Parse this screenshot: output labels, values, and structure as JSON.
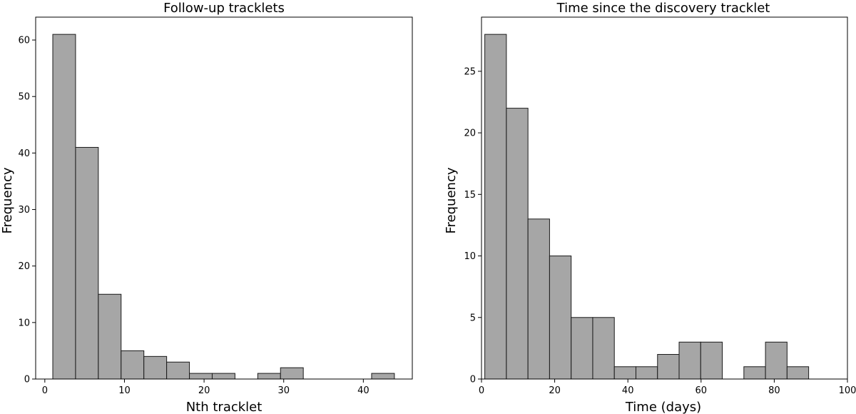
{
  "colors": {
    "bar_fill": "#a6a6a6",
    "bar_edge": "#1a1a1a"
  },
  "chart_data": [
    {
      "type": "bar",
      "title": "Follow-up tracklets",
      "xlabel": "Nth tracklet",
      "ylabel": "Frequency",
      "xlim": [
        -1.15,
        46.15
      ],
      "ylim": [
        0,
        64.05
      ],
      "xticks": [
        0,
        10,
        20,
        30,
        40
      ],
      "yticks": [
        0,
        10,
        20,
        30,
        40,
        50,
        60
      ],
      "bins": [
        {
          "x0": 1.0,
          "x1": 3.86,
          "value": 61
        },
        {
          "x0": 3.86,
          "x1": 6.72,
          "value": 41
        },
        {
          "x0": 6.72,
          "x1": 9.58,
          "value": 15
        },
        {
          "x0": 9.58,
          "x1": 12.44,
          "value": 5
        },
        {
          "x0": 12.44,
          "x1": 15.3,
          "value": 4
        },
        {
          "x0": 15.3,
          "x1": 18.16,
          "value": 3
        },
        {
          "x0": 18.16,
          "x1": 21.02,
          "value": 1
        },
        {
          "x0": 21.02,
          "x1": 23.88,
          "value": 1
        },
        {
          "x0": 23.88,
          "x1": 26.74,
          "value": 0
        },
        {
          "x0": 26.74,
          "x1": 29.6,
          "value": 1
        },
        {
          "x0": 29.6,
          "x1": 32.46,
          "value": 2
        },
        {
          "x0": 32.46,
          "x1": 35.32,
          "value": 0
        },
        {
          "x0": 35.32,
          "x1": 38.18,
          "value": 0
        },
        {
          "x0": 38.18,
          "x1": 41.04,
          "value": 0
        },
        {
          "x0": 41.04,
          "x1": 43.9,
          "value": 1
        }
      ]
    },
    {
      "type": "bar",
      "title": "Time since the discovery tracklet",
      "xlabel": "Time (days)",
      "ylabel": "Frequency",
      "xlim": [
        0,
        100
      ],
      "ylim": [
        0,
        29.4
      ],
      "xticks": [
        0,
        20,
        40,
        60,
        80,
        100
      ],
      "yticks": [
        0,
        5,
        10,
        15,
        20,
        25
      ],
      "bins": [
        {
          "x0": 0.9,
          "x1": 6.8,
          "value": 28
        },
        {
          "x0": 6.8,
          "x1": 12.7,
          "value": 22
        },
        {
          "x0": 12.7,
          "x1": 18.6,
          "value": 13
        },
        {
          "x0": 18.6,
          "x1": 24.5,
          "value": 10
        },
        {
          "x0": 24.5,
          "x1": 30.4,
          "value": 5
        },
        {
          "x0": 30.4,
          "x1": 36.3,
          "value": 5
        },
        {
          "x0": 36.3,
          "x1": 42.2,
          "value": 1
        },
        {
          "x0": 42.2,
          "x1": 48.1,
          "value": 1
        },
        {
          "x0": 48.1,
          "x1": 54.0,
          "value": 2
        },
        {
          "x0": 54.0,
          "x1": 59.9,
          "value": 3
        },
        {
          "x0": 59.9,
          "x1": 65.8,
          "value": 3
        },
        {
          "x0": 65.8,
          "x1": 71.7,
          "value": 0
        },
        {
          "x0": 71.7,
          "x1": 77.6,
          "value": 1
        },
        {
          "x0": 77.6,
          "x1": 83.5,
          "value": 3
        },
        {
          "x0": 83.5,
          "x1": 89.4,
          "value": 1
        }
      ]
    }
  ]
}
